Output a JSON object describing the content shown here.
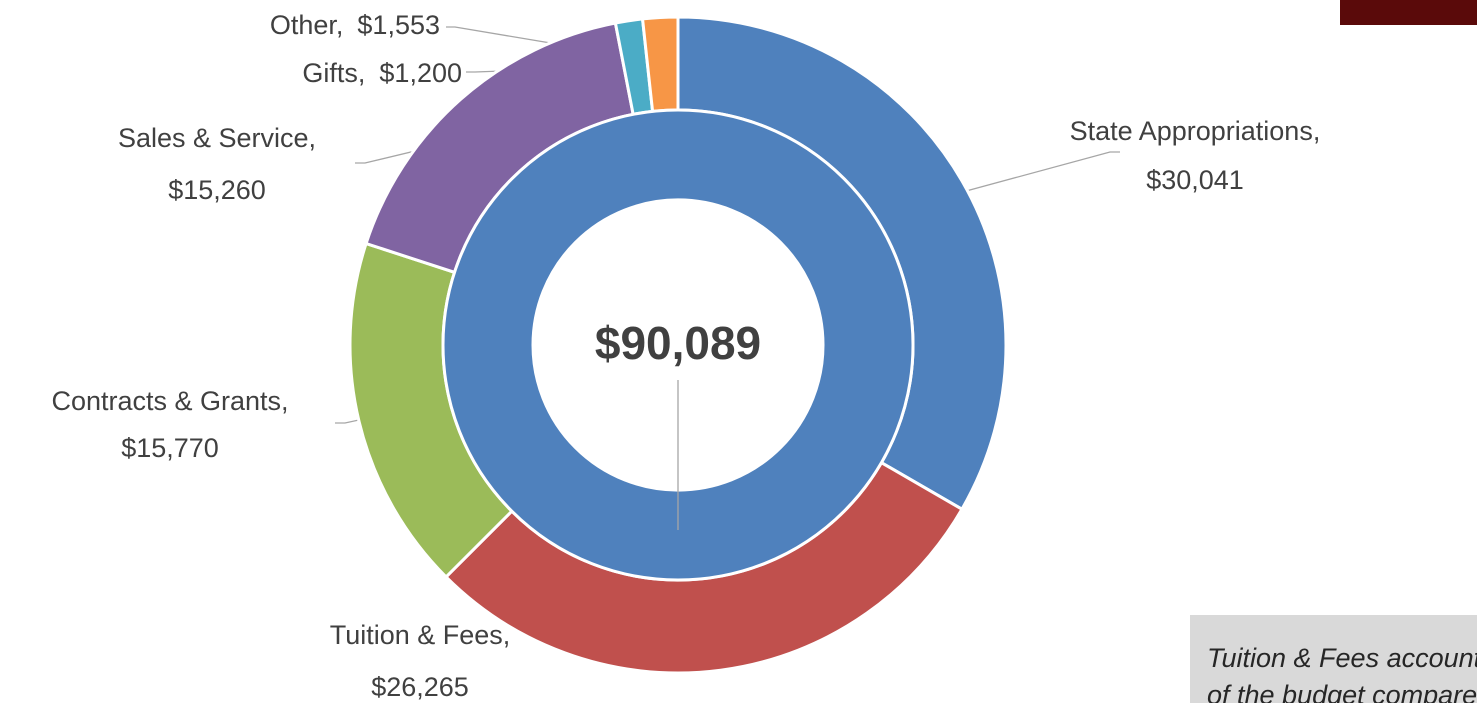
{
  "chart_data": {
    "type": "donut",
    "categories": [
      "State Appropriations,",
      "Tuition & Fees,",
      "Contracts & Grants,",
      "Sales & Service,",
      "Gifts,",
      "Other,"
    ],
    "values": [
      30041,
      26265,
      15770,
      15260,
      1200,
      1553
    ],
    "value_labels": [
      "$30,041",
      "$26,265",
      "$15,770",
      "$15,260",
      "$1,200",
      "$1,553"
    ],
    "colors": [
      "#4f81bd",
      "#c0504d",
      "#9bbb59",
      "#8064a2",
      "#4bacc6",
      "#f79646"
    ],
    "inner": {
      "values": [
        90089
      ],
      "value_labels": [
        "$90,089"
      ],
      "colors": [
        "#4f81bd"
      ]
    },
    "annotation": [
      "Tuition & Fees account fo",
      "of the budget compared"
    ]
  }
}
